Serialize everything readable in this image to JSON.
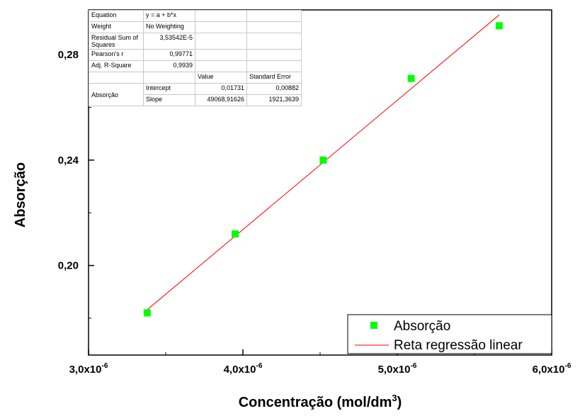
{
  "chart_data": {
    "type": "scatter",
    "xlabel": "Concentração (mol/dm",
    "xlabel_sup": "3",
    "xlabel_end": ")",
    "ylabel": "Absorção",
    "xlim": [
      3e-06,
      6e-06
    ],
    "ylim": [
      0.166,
      0.297
    ],
    "x_ticks": [
      3e-06,
      4e-06,
      5e-06,
      6e-06
    ],
    "x_tick_labels": [
      {
        "mant": "3,0x10",
        "exp": "-6"
      },
      {
        "mant": "4,0x10",
        "exp": "-6"
      },
      {
        "mant": "5,0x10",
        "exp": "-6"
      },
      {
        "mant": "6,0x10",
        "exp": "-6"
      }
    ],
    "y_ticks": [
      0.2,
      0.24,
      0.28
    ],
    "y_tick_labels": [
      "0,20",
      "0,24",
      "0,28"
    ],
    "grid": false,
    "legend_position": "bottom-right",
    "series": [
      {
        "name": "Absorção",
        "kind": "scatter",
        "color": "#00ff00",
        "marker": "square",
        "x": [
          3.38e-06,
          3.95e-06,
          4.52e-06,
          5.09e-06,
          5.66e-06
        ],
        "y": [
          0.182,
          0.212,
          0.24,
          0.271,
          0.291
        ]
      },
      {
        "name": "Reta regressão linear",
        "kind": "line",
        "color": "#ff0000",
        "x": [
          3.38e-06,
          5.66e-06
        ],
        "y": [
          0.1832,
          0.2951
        ]
      }
    ]
  },
  "fit_table": {
    "equation_label": "Equation",
    "equation_value": "y = a + b*x",
    "weight_label": "Weight",
    "weight_value": "No Weighting",
    "rss_label": "Residual Sum of Squares",
    "rss_value": "3,53542E-5",
    "pearson_label": "Pearson's r",
    "pearson_value": "0,99771",
    "adjr_label": "Adj. R-Square",
    "adjr_value": "0,9939",
    "value_header": "Value",
    "stderr_header": "Standard Error",
    "group_label": "Absorção",
    "intercept_label": "Intercept",
    "intercept_value": "0,01731",
    "intercept_error": "0,00882",
    "slope_label": "Slope",
    "slope_value": "49068,91626",
    "slope_error": "1921,3639"
  }
}
